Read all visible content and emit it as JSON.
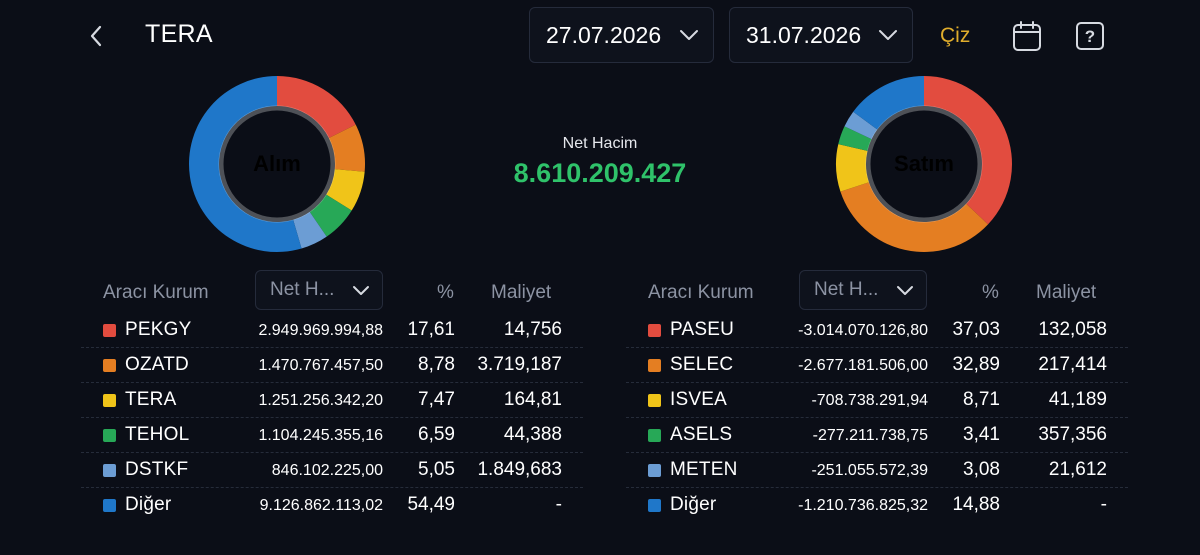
{
  "header": {
    "title": "TERA",
    "date_start": "27.07.2026",
    "date_end": "31.07.2026",
    "ciz_label": "Çiz"
  },
  "center": {
    "net_label": "Net Hacim",
    "net_value": "8.610.209.427"
  },
  "colors": {
    "red": "#e24c3f",
    "orange": "#e47e22",
    "yellow": "#f0c419",
    "green": "#27a857",
    "lightblue": "#6c9dd4",
    "blue": "#1f77c9",
    "net_green": "#2fc26a",
    "accent_gold": "#e0ad2c"
  },
  "buy": {
    "donut_label": "Alım",
    "headers": {
      "broker": "Aracı Kurum",
      "select": "Net H...",
      "pct": "%",
      "cost": "Maliyet"
    },
    "rows": [
      {
        "code": "PEKGY",
        "value": "2.949.969.994,88",
        "pct": "17,61",
        "cost": "14,756",
        "color": "#e24c3f",
        "share": 17.61
      },
      {
        "code": "OZATD",
        "value": "1.470.767.457,50",
        "pct": "8,78",
        "cost": "3.719,187",
        "color": "#e47e22",
        "share": 8.78
      },
      {
        "code": "TERA",
        "value": "1.251.256.342,20",
        "pct": "7,47",
        "cost": "164,81",
        "color": "#f0c419",
        "share": 7.47
      },
      {
        "code": "TEHOL",
        "value": "1.104.245.355,16",
        "pct": "6,59",
        "cost": "44,388",
        "color": "#27a857",
        "share": 6.59
      },
      {
        "code": "DSTKF",
        "value": "846.102.225,00",
        "pct": "5,05",
        "cost": "1.849,683",
        "color": "#6c9dd4",
        "share": 5.05
      },
      {
        "code": "Diğer",
        "value": "9.126.862.113,02",
        "pct": "54,49",
        "cost": "-",
        "color": "#1f77c9",
        "share": 54.49
      }
    ]
  },
  "sell": {
    "donut_label": "Satım",
    "headers": {
      "broker": "Aracı Kurum",
      "select": "Net H...",
      "pct": "%",
      "cost": "Maliyet"
    },
    "rows": [
      {
        "code": "PASEU",
        "value": "-3.014.070.126,80",
        "pct": "37,03",
        "cost": "132,058",
        "color": "#e24c3f",
        "share": 37.03
      },
      {
        "code": "SELEC",
        "value": "-2.677.181.506,00",
        "pct": "32,89",
        "cost": "217,414",
        "color": "#e47e22",
        "share": 32.89
      },
      {
        "code": "ISVEA",
        "value": "-708.738.291,94",
        "pct": "8,71",
        "cost": "41,189",
        "color": "#f0c419",
        "share": 8.71
      },
      {
        "code": "ASELS",
        "value": "-277.211.738,75",
        "pct": "3,41",
        "cost": "357,356",
        "color": "#27a857",
        "share": 3.41
      },
      {
        "code": "METEN",
        "value": "-251.055.572,39",
        "pct": "3,08",
        "cost": "21,612",
        "color": "#6c9dd4",
        "share": 3.08
      },
      {
        "code": "Diğer",
        "value": "-1.210.736.825,32",
        "pct": "14,88",
        "cost": "-",
        "color": "#1f77c9",
        "share": 14.88
      }
    ]
  },
  "icons": {
    "back": "chevron-left-icon",
    "dropdown": "chevron-down-icon",
    "calendar": "calendar-icon",
    "help": "help-icon"
  }
}
